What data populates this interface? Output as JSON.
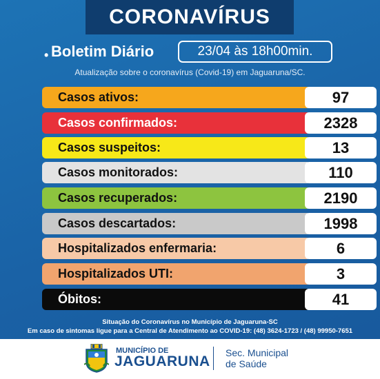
{
  "header": {
    "title": "CORONAVÍRUS"
  },
  "bulletin": {
    "bullet": "•",
    "label": "Boletim Diário",
    "date": "23/04 às 18h00min.",
    "subtitle": "Atualização sobre o coronavírus (Covid-19) em Jaguaruna/SC."
  },
  "stats": [
    {
      "label": "Casos ativos:",
      "value": "97",
      "color": "#f6a71c",
      "text_color": "#111111"
    },
    {
      "label": "Casos confirmados:",
      "value": "2328",
      "color": "#e8313a",
      "text_color": "#ffffff"
    },
    {
      "label": "Casos suspeitos:",
      "value": "13",
      "color": "#f7e818",
      "text_color": "#111111"
    },
    {
      "label": "Casos monitorados:",
      "value": "110",
      "color": "#e3e3e3",
      "text_color": "#111111"
    },
    {
      "label": "Casos recuperados:",
      "value": "2190",
      "color": "#8dc43f",
      "text_color": "#111111"
    },
    {
      "label": "Casos descartados:",
      "value": "1998",
      "color": "#c9c9c9",
      "text_color": "#111111"
    },
    {
      "label": "Hospitalizados enfermaria:",
      "value": "6",
      "color": "#f7c9a7",
      "text_color": "#111111"
    },
    {
      "label": "Hospitalizados UTI:",
      "value": "3",
      "color": "#f1a46e",
      "text_color": "#111111"
    },
    {
      "label": "Óbitos:",
      "value": "41",
      "color": "#0b0b0b",
      "text_color": "#ffffff"
    }
  ],
  "footer_notes": {
    "line1": "Situação do Coronavírus no Município de Jaguaruna-SC",
    "line2": "Em caso de sintomas ligue para a Central de Atendimento ao COVID-19: (48) 3624-1723 / (48) 99950-7651"
  },
  "footer": {
    "municipality_small": "MUNICÍPIO DE",
    "municipality_name": "JAGUARUNA",
    "secretariat_line1": "Sec. Municipal",
    "secretariat_line2": "de Saúde"
  },
  "colors": {
    "brand_blue": "#1a4f8f",
    "title_bg": "#0f3d6e",
    "background": "#1d6fb2"
  },
  "icons": {
    "seal": "municipal-seal-icon"
  }
}
